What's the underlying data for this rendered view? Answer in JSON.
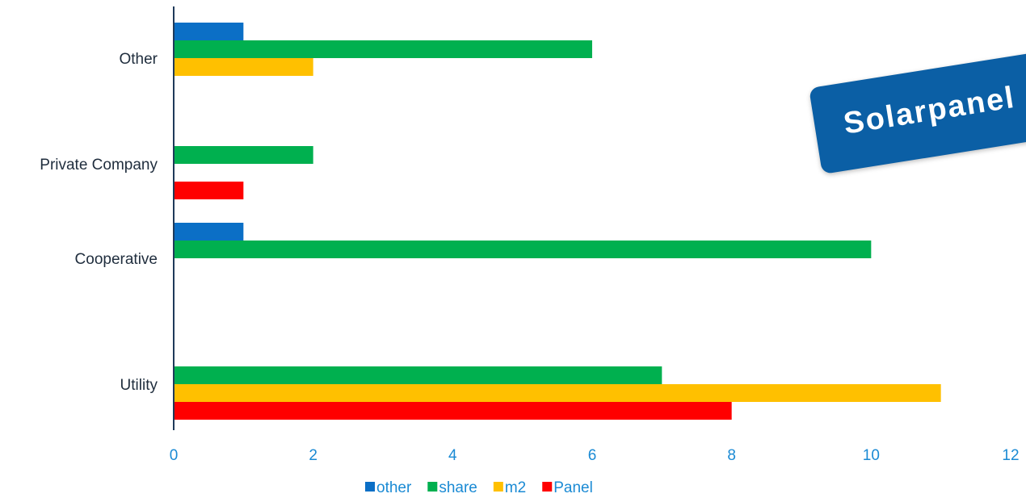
{
  "chart_data": {
    "type": "bar",
    "orientation": "horizontal",
    "categories": [
      "Other",
      "Private Company",
      "Cooperative",
      "Utility"
    ],
    "series": [
      {
        "name": "other",
        "color": "#0b6fc6",
        "values": [
          1,
          0,
          1,
          0
        ]
      },
      {
        "name": "share",
        "color": "#00b04f",
        "values": [
          6,
          2,
          10,
          7
        ]
      },
      {
        "name": "m2",
        "color": "#ffc000",
        "values": [
          2,
          0,
          0,
          11
        ]
      },
      {
        "name": "Panel",
        "color": "#ff0000",
        "values": [
          0,
          1,
          0,
          8
        ]
      }
    ],
    "xlim": [
      0,
      12
    ],
    "xticks": [
      0,
      2,
      4,
      6,
      8,
      10,
      12
    ],
    "grid": false,
    "legend_position": "bottom"
  },
  "badge": {
    "text": "Solarpanel",
    "color": "#0b5fa5"
  }
}
